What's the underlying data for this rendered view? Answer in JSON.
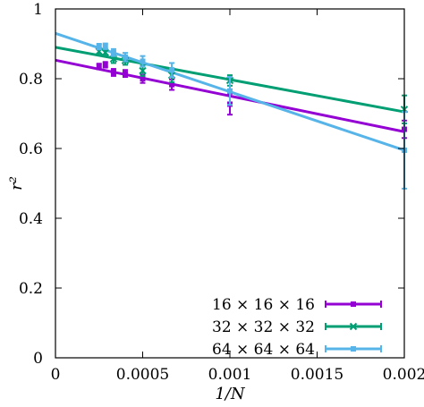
{
  "chart_data": {
    "type": "scatter",
    "title": "",
    "xlabel": "1/N",
    "ylabel": "r²",
    "xlim": [
      0,
      0.002
    ],
    "ylim": [
      0,
      1
    ],
    "xticks": [
      0,
      0.0005,
      0.001,
      0.0015,
      0.002
    ],
    "xtick_labels": [
      "0",
      "0.0005",
      "0.001",
      "0.0015",
      "0.002"
    ],
    "yticks": [
      0,
      0.2,
      0.4,
      0.6,
      0.8,
      1
    ],
    "ytick_labels": [
      "0",
      "0.2",
      "0.4",
      "0.6",
      "0.8",
      "1"
    ],
    "grid": false,
    "legend_position": "bottom-right",
    "series": [
      {
        "name": "16 × 16 × 16",
        "color": "#9400d3",
        "marker": "square",
        "points": [
          {
            "x": 0.00025,
            "y": 0.835,
            "err": 0.008
          },
          {
            "x": 0.000286,
            "y": 0.84,
            "err": 0.008
          },
          {
            "x": 0.000333,
            "y": 0.818,
            "err": 0.01
          },
          {
            "x": 0.0004,
            "y": 0.815,
            "err": 0.01
          },
          {
            "x": 0.0005,
            "y": 0.8,
            "err": 0.012
          },
          {
            "x": 0.000667,
            "y": 0.783,
            "err": 0.015
          },
          {
            "x": 0.001,
            "y": 0.727,
            "err": 0.03
          },
          {
            "x": 0.002,
            "y": 0.655,
            "err": 0.025
          }
        ],
        "fit": {
          "intercept": 0.853,
          "slope": -102.5
        }
      },
      {
        "name": "32 × 32 × 32",
        "color": "#009e73",
        "marker": "x",
        "points": [
          {
            "x": 0.00025,
            "y": 0.878,
            "err": 0.01
          },
          {
            "x": 0.000286,
            "y": 0.875,
            "err": 0.01
          },
          {
            "x": 0.000333,
            "y": 0.857,
            "err": 0.012
          },
          {
            "x": 0.0004,
            "y": 0.852,
            "err": 0.012
          },
          {
            "x": 0.0005,
            "y": 0.823,
            "err": 0.015
          },
          {
            "x": 0.000667,
            "y": 0.81,
            "err": 0.02
          },
          {
            "x": 0.001,
            "y": 0.795,
            "err": 0.015
          },
          {
            "x": 0.002,
            "y": 0.712,
            "err": 0.04
          }
        ],
        "fit": {
          "intercept": 0.89,
          "slope": -92.5
        }
      },
      {
        "name": "64 × 64 × 64",
        "color": "#56b4e9",
        "marker": "square",
        "points": [
          {
            "x": 0.00025,
            "y": 0.892,
            "err": 0.008
          },
          {
            "x": 0.000286,
            "y": 0.893,
            "err": 0.008
          },
          {
            "x": 0.000333,
            "y": 0.875,
            "err": 0.01
          },
          {
            "x": 0.0004,
            "y": 0.862,
            "err": 0.012
          },
          {
            "x": 0.0005,
            "y": 0.85,
            "err": 0.015
          },
          {
            "x": 0.000667,
            "y": 0.825,
            "err": 0.02
          },
          {
            "x": 0.001,
            "y": 0.765,
            "err": 0.04
          },
          {
            "x": 0.002,
            "y": 0.595,
            "err": 0.11
          }
        ],
        "fit": {
          "intercept": 0.93,
          "slope": -167.5
        }
      }
    ]
  }
}
